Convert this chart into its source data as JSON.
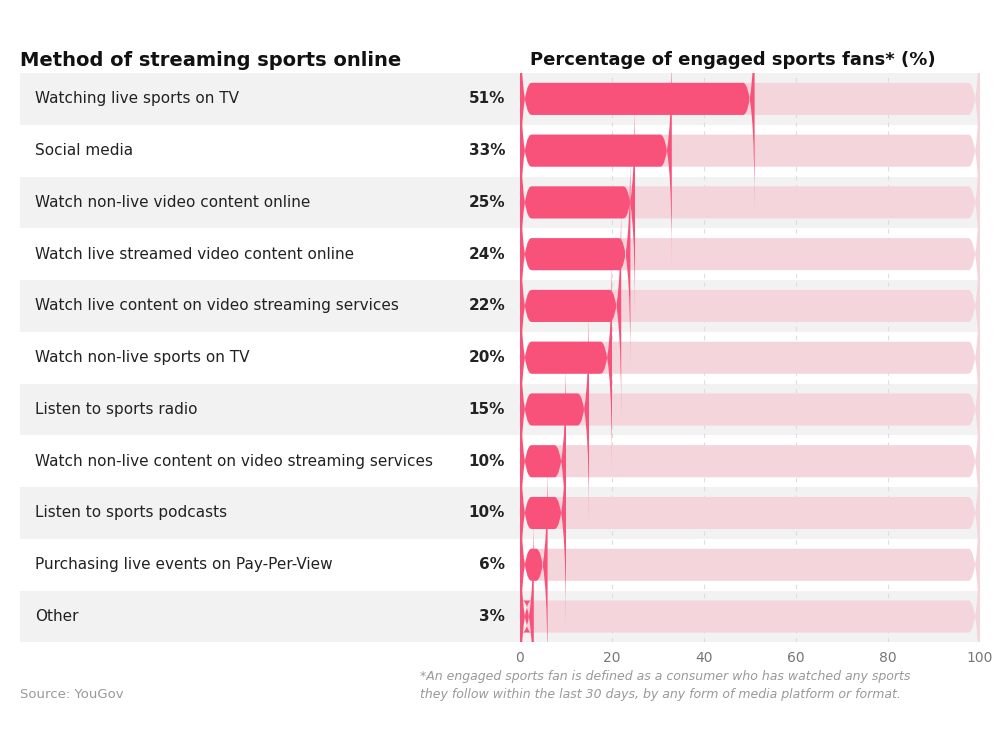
{
  "categories": [
    "Watching live sports on TV",
    "Social media",
    "Watch non-live video content online",
    "Watch live streamed video content online",
    "Watch live content on video streaming services",
    "Watch non-live sports on TV",
    "Listen to sports radio",
    "Watch non-live content on video streaming services",
    "Listen to sports podcasts",
    "Purchasing live events on Pay-Per-View",
    "Other"
  ],
  "values": [
    51,
    33,
    25,
    24,
    22,
    20,
    15,
    10,
    10,
    6,
    3
  ],
  "bar_color": "#F8527A",
  "bg_bar_color": "#F5D5DC",
  "background_color": "#FFFFFF",
  "row_bg_even": "#F2F2F2",
  "row_bg_odd": "#FFFFFF",
  "title_left": "Method of streaming sports online",
  "title_right": "Percentage of engaged sports fans* (%)",
  "source_text": "Source: YouGov",
  "footnote_text": "*An engaged sports fan is defined as a consumer who has watched any sports\nthey follow within the last 30 days, by any form of media platform or format.",
  "xlim": [
    0,
    100
  ],
  "xticks": [
    0,
    20,
    40,
    60,
    80,
    100
  ],
  "title_fontsize": 14,
  "label_fontsize": 11,
  "value_fontsize": 11,
  "tick_fontsize": 10,
  "source_fontsize": 9.5,
  "grid_color": "#DDDDDD",
  "tick_color": "#777777"
}
